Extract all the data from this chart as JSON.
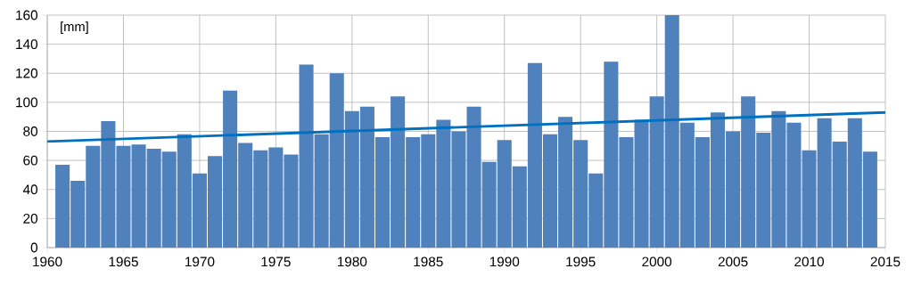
{
  "chart_data": {
    "type": "bar",
    "x": [
      1961,
      1962,
      1963,
      1964,
      1965,
      1966,
      1967,
      1968,
      1969,
      1970,
      1971,
      1972,
      1973,
      1974,
      1975,
      1976,
      1977,
      1978,
      1979,
      1980,
      1981,
      1982,
      1983,
      1984,
      1985,
      1986,
      1987,
      1988,
      1989,
      1990,
      1991,
      1992,
      1993,
      1994,
      1995,
      1996,
      1997,
      1998,
      1999,
      2000,
      2001,
      2002,
      2003,
      2004,
      2005,
      2006,
      2007,
      2008,
      2009,
      2010,
      2011,
      2012,
      2013,
      2014
    ],
    "series": [
      {
        "color": "#4f81bd",
        "values": [
          57,
          46,
          70,
          87,
          70,
          71,
          68,
          66,
          78,
          51,
          63,
          108,
          72,
          67,
          69,
          64,
          126,
          78,
          120,
          94,
          97,
          76,
          104,
          76,
          78,
          88,
          80,
          97,
          59,
          74,
          56,
          127,
          78,
          90,
          74,
          51,
          128,
          76,
          88,
          104,
          160,
          86,
          76,
          93,
          80,
          104,
          79,
          94,
          86,
          67,
          89,
          73,
          89,
          66
        ]
      },
      {
        "type": "line",
        "color": "#0070c0",
        "x": [
          1960,
          2015
        ],
        "values": [
          73,
          93
        ]
      }
    ],
    "annotations": [
      "[mm]"
    ],
    "xlim": [
      1960,
      2015
    ],
    "xticks": [
      1960,
      1965,
      1970,
      1975,
      1980,
      1985,
      1990,
      1995,
      2000,
      2005,
      2010,
      2015
    ],
    "ylim": [
      0,
      160
    ],
    "yticks": [
      0,
      20,
      40,
      60,
      80,
      100,
      120,
      140,
      160
    ],
    "grid": true
  }
}
